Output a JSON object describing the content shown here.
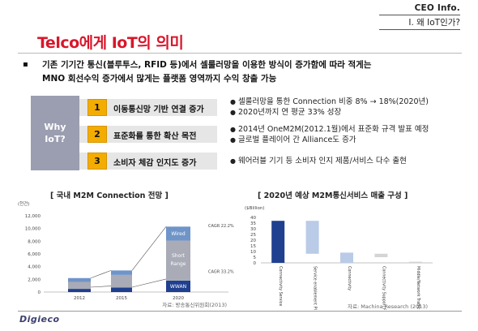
{
  "header": {
    "section": "CEO Info.",
    "subsection": "I. 왜 IoT인가?"
  },
  "title": "Telco에게 IoT의 의미",
  "bullet": {
    "mark": "▪",
    "line1": "기존 기기간 통신(블루투스, RFID 등)에서 셀룰러망을 이용한 방식이 증가함에 따라 적게는",
    "line2": "MNO 회선수익 증가에서 많게는 플랫폼 영역까지 수익 창출 가능"
  },
  "why": {
    "line1": "Why",
    "line2": "IoT?"
  },
  "reasons": [
    {
      "num": "1",
      "label": "이동통신망 기반 연결 증가",
      "details": [
        "셀룰러망을 통한 Connection 비중 8% → 18%(2020년)",
        "2020년까지 연 평균 33% 성장"
      ]
    },
    {
      "num": "2",
      "label": "표준화를 통한 확산 목전",
      "details": [
        "2014년 OneM2M(2012.1월)에서 표준화 규격 발표 예정",
        "글로벌 플레이어 간 Alliance도 증가"
      ]
    },
    {
      "num": "3",
      "label": "소비자 체감 인지도 증가",
      "details": [
        "웨어러블 기기 등 소비자 인지 제품/서비스 다수 출현"
      ]
    }
  ],
  "colors": {
    "accent_red": "#d9162b",
    "badge_orange": "#f3ac00",
    "why_box": "#9b9db0",
    "wwan": "#1f3f8f"
  },
  "chart_data": [
    {
      "type": "bar",
      "title": "[ 국내 M2M Connection 전망 ]",
      "ylabel": "(천건)",
      "categories": [
        "2012",
        "2015",
        "2020"
      ],
      "ylim": [
        0,
        12000
      ],
      "yticks": [
        "0",
        "2,000",
        "4,000",
        "6,000",
        "8,000",
        "10,000",
        "12,000"
      ],
      "stacked": true,
      "series": [
        {
          "name": "WWAN",
          "values": [
            500,
            700,
            1800
          ]
        },
        {
          "name": "Short Range",
          "values": [
            1100,
            2000,
            6300
          ]
        },
        {
          "name": "Wired",
          "values": [
            600,
            700,
            2200
          ]
        }
      ],
      "annotations": [
        "CAGR 22.2%",
        "CAGR 33.2%"
      ],
      "source": "자료: 방송통신위원회(2013)"
    },
    {
      "type": "bar",
      "title": "[ 2020년 예상 M2M통신서비스 매출 구성 ]",
      "ylabel": "($Billion)",
      "ylim": [
        0,
        40
      ],
      "yticks": [
        "0",
        "5",
        "10",
        "15",
        "20",
        "25",
        "30",
        "35",
        "40"
      ],
      "categories": [
        "Connectivity Service",
        "Service enablement Platform",
        "Connectivity",
        "Connectivity Support Platform",
        "Middle/Network Traffic"
      ],
      "series": [
        {
          "name": "",
          "values": [
            37,
            37,
            9,
            8,
            1
          ],
          "bases": [
            0,
            8,
            0,
            5,
            0
          ]
        }
      ],
      "source": "자료: Machina Research (2013)"
    }
  ],
  "footer": {
    "logo": "Digieco"
  }
}
